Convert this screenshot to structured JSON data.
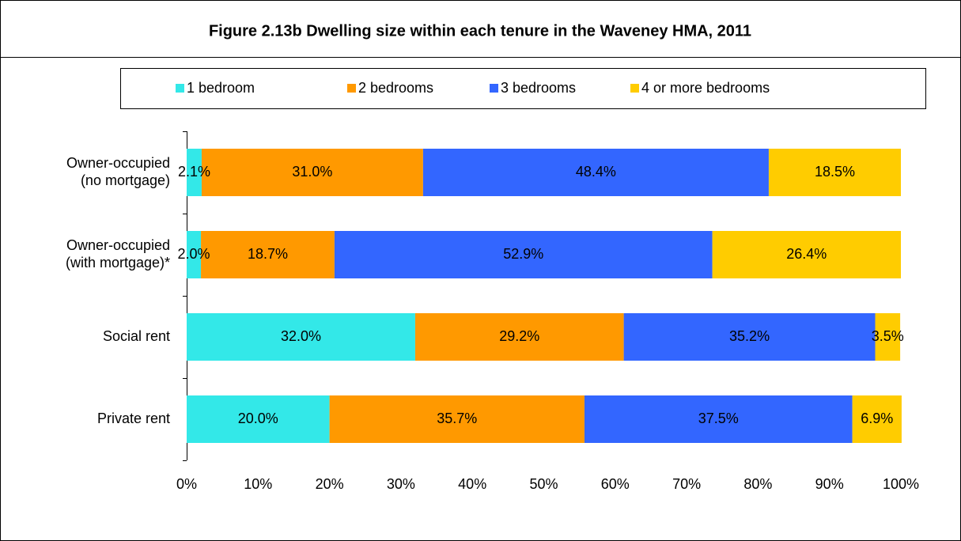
{
  "chart_data": {
    "type": "stacked_barh",
    "title": "Figure 2.13b Dwelling size within each tenure in the Waveney HMA, 2011",
    "categories": [
      [
        "Owner-occupied",
        "(no mortgage)"
      ],
      [
        "Owner-occupied",
        "(with mortgage)*"
      ],
      [
        "Social rent"
      ],
      [
        "Private rent"
      ]
    ],
    "series": [
      {
        "name": "1 bedroom",
        "color": "#33e8e8",
        "values": [
          2.1,
          2.0,
          32.0,
          20.0
        ],
        "value_labels": [
          "2.1%",
          "2.0%",
          "32.0%",
          "20.0%"
        ]
      },
      {
        "name": "2 bedrooms",
        "color": "#ff9900",
        "values": [
          31.0,
          18.7,
          29.2,
          35.7
        ],
        "value_labels": [
          "31.0%",
          "18.7%",
          "29.2%",
          "35.7%"
        ]
      },
      {
        "name": "3 bedrooms",
        "color": "#3366ff",
        "values": [
          48.4,
          52.9,
          35.2,
          37.5
        ],
        "value_labels": [
          "48.4%",
          "52.9%",
          "35.2%",
          "37.5%"
        ]
      },
      {
        "name": "4 or more bedrooms",
        "color": "#ffcc00",
        "values": [
          18.5,
          26.4,
          3.5,
          6.9
        ],
        "value_labels": [
          "18.5%",
          "26.4%",
          "3.5%",
          "6.9%"
        ]
      }
    ],
    "xlim": [
      0,
      100
    ],
    "xticks": [
      {
        "value": 0,
        "label": "0%"
      },
      {
        "value": 10,
        "label": "10%"
      },
      {
        "value": 20,
        "label": "20%"
      },
      {
        "value": 30,
        "label": "30%"
      },
      {
        "value": 40,
        "label": "40%"
      },
      {
        "value": 50,
        "label": "50%"
      },
      {
        "value": 60,
        "label": "60%"
      },
      {
        "value": 70,
        "label": "70%"
      },
      {
        "value": 80,
        "label": "80%"
      },
      {
        "value": 90,
        "label": "90%"
      },
      {
        "value": 100,
        "label": "100%"
      }
    ],
    "legend": "top"
  }
}
